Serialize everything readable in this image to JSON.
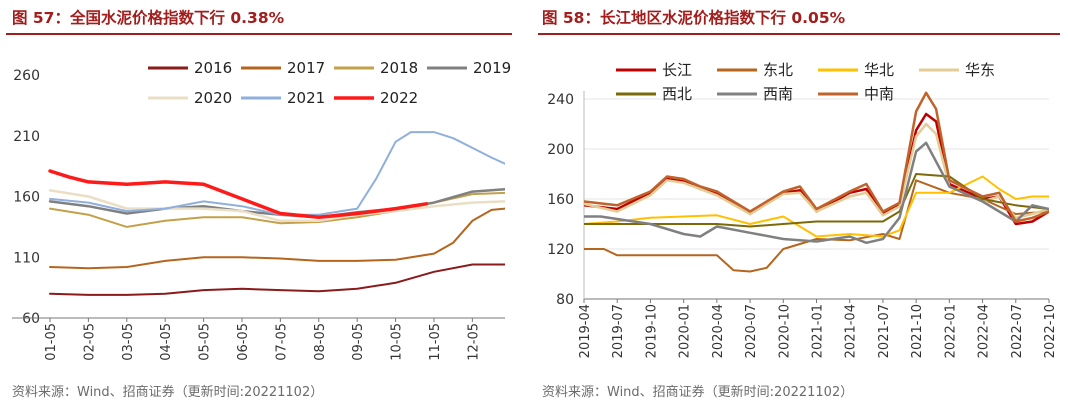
{
  "left": {
    "title": "图 57：全国水泥价格指数下行 0.38%",
    "source": "资料来源：Wind、招商证券（更新时间:20221102）"
  },
  "right": {
    "title": "图 58：长江地区水泥价格指数下行 0.05%",
    "source": "资料来源：Wind、招商证券（更新时间:20221102）"
  },
  "chart_data": [
    {
      "type": "line",
      "title": "全国水泥价格指数下行 0.38%",
      "x_ticks": [
        "01-05",
        "02-05",
        "03-05",
        "04-05",
        "05-05",
        "06-05",
        "07-05",
        "08-05",
        "09-05",
        "10-05",
        "11-05",
        "12-05"
      ],
      "x_range": [
        1,
        12.85
      ],
      "ylim": [
        60,
        260
      ],
      "y_ticks": [
        60,
        110,
        160,
        210,
        260
      ],
      "legend_position": "top",
      "series": [
        {
          "name": "2016",
          "color": "#8b1a1a",
          "width": 2,
          "x": [
            1,
            2,
            3,
            4,
            5,
            6,
            7,
            8,
            9,
            10,
            11,
            12,
            12.85
          ],
          "values": [
            80,
            79,
            79,
            80,
            83,
            84,
            83,
            82,
            84,
            89,
            98,
            104,
            104
          ]
        },
        {
          "name": "2017",
          "color": "#b5651d",
          "width": 2,
          "x": [
            1,
            2,
            3,
            4,
            5,
            6,
            7,
            8,
            9,
            10,
            11,
            11.5,
            12,
            12.5,
            12.85
          ],
          "values": [
            102,
            101,
            102,
            107,
            110,
            110,
            109,
            107,
            107,
            108,
            113,
            122,
            140,
            149,
            150
          ]
        },
        {
          "name": "2018",
          "color": "#c4a04a",
          "width": 2,
          "x": [
            1,
            2,
            3,
            4,
            5,
            6,
            7,
            8,
            9,
            10,
            11,
            12,
            12.85
          ],
          "values": [
            150,
            145,
            135,
            140,
            143,
            143,
            138,
            139,
            143,
            148,
            155,
            162,
            163
          ]
        },
        {
          "name": "2019",
          "color": "#808080",
          "width": 2.5,
          "x": [
            1,
            2,
            3,
            4,
            5,
            6,
            7,
            8,
            9,
            10,
            11,
            12,
            12.85
          ],
          "values": [
            156,
            152,
            146,
            150,
            152,
            148,
            145,
            143,
            147,
            150,
            155,
            164,
            166
          ]
        },
        {
          "name": "2020",
          "color": "#eadfc4",
          "width": 2.5,
          "x": [
            1,
            2,
            3,
            4,
            5,
            6,
            7,
            8,
            9,
            10,
            11,
            12,
            12.85
          ],
          "values": [
            165,
            160,
            150,
            150,
            150,
            148,
            140,
            140,
            145,
            148,
            152,
            155,
            156
          ]
        },
        {
          "name": "2021",
          "color": "#8fb0dc",
          "width": 2,
          "x": [
            1,
            2,
            3,
            4,
            5,
            6,
            7,
            8,
            9,
            9.5,
            10,
            10.4,
            11,
            11.5,
            12,
            12.5,
            12.85
          ],
          "values": [
            158,
            155,
            148,
            150,
            156,
            152,
            145,
            145,
            150,
            175,
            205,
            213,
            213,
            208,
            200,
            192,
            187
          ]
        },
        {
          "name": "2022",
          "color": "#ff1a1a",
          "width": 3.5,
          "x": [
            1,
            1.5,
            2,
            3,
            4,
            5,
            6,
            7,
            8,
            9,
            10,
            10.8
          ],
          "values": [
            181,
            176,
            172,
            170,
            172,
            170,
            158,
            146,
            143,
            146,
            150,
            154
          ]
        }
      ]
    },
    {
      "type": "line",
      "title": "长江地区水泥价格指数下行 0.05%",
      "x_ticks": [
        "2019-04",
        "2019-07",
        "2019-10",
        "2020-01",
        "2020-04",
        "2020-07",
        "2020-10",
        "2021-01",
        "2021-04",
        "2021-07",
        "2021-10",
        "2022-01",
        "2022-04",
        "2022-07",
        "2022-10"
      ],
      "x_range": [
        0,
        14
      ],
      "ylim": [
        80,
        240
      ],
      "y_ticks": [
        80,
        120,
        160,
        200,
        240
      ],
      "legend_position": "top",
      "series": [
        {
          "name": "长江",
          "color": "#c00000",
          "width": 2.5,
          "x": [
            0,
            1,
            2,
            2.5,
            3,
            3.5,
            4,
            5,
            6,
            6.5,
            7,
            8,
            8.5,
            9,
            9.5,
            10,
            10.3,
            10.6,
            11,
            12,
            12.5,
            13,
            13.5,
            14
          ],
          "values": [
            155,
            152,
            165,
            176,
            174,
            168,
            165,
            148,
            165,
            167,
            150,
            165,
            168,
            148,
            155,
            215,
            228,
            222,
            172,
            160,
            162,
            140,
            142,
            150
          ]
        },
        {
          "name": "东北",
          "color": "#b5651d",
          "width": 2,
          "x": [
            0,
            0.6,
            1,
            2,
            3,
            4,
            4.5,
            5,
            5.5,
            6,
            7,
            8,
            9,
            9.5,
            10,
            11,
            12,
            13,
            14
          ],
          "values": [
            120,
            120,
            115,
            115,
            115,
            115,
            103,
            102,
            105,
            120,
            128,
            127,
            132,
            128,
            175,
            165,
            160,
            148,
            150
          ]
        },
        {
          "name": "华北",
          "color": "#ffc000",
          "width": 2,
          "x": [
            0,
            1,
            2,
            3,
            4,
            5,
            6,
            7,
            8,
            9,
            9.5,
            10,
            11,
            12,
            12.5,
            13,
            13.5,
            14
          ],
          "values": [
            140,
            142,
            145,
            146,
            147,
            140,
            146,
            130,
            132,
            130,
            135,
            165,
            165,
            178,
            168,
            160,
            162,
            162
          ]
        },
        {
          "name": "华东",
          "color": "#e3cc96",
          "width": 2.5,
          "x": [
            0,
            1,
            2,
            2.5,
            3,
            4,
            5,
            6,
            6.5,
            7,
            8,
            8.5,
            9,
            9.5,
            10,
            10.3,
            10.6,
            11,
            12,
            12.5,
            13,
            13.5,
            14
          ],
          "values": [
            156,
            150,
            163,
            175,
            173,
            163,
            148,
            164,
            165,
            150,
            162,
            165,
            147,
            154,
            210,
            220,
            212,
            170,
            158,
            162,
            145,
            148,
            152
          ]
        },
        {
          "name": "西北",
          "color": "#7b6a0a",
          "width": 2,
          "x": [
            0,
            1,
            2,
            3,
            4,
            5,
            6,
            7,
            8,
            9,
            9.5,
            10,
            11,
            12,
            13,
            14
          ],
          "values": [
            140,
            140,
            140,
            140,
            140,
            138,
            140,
            142,
            142,
            142,
            150,
            180,
            178,
            160,
            155,
            152
          ]
        },
        {
          "name": "西南",
          "color": "#808080",
          "width": 2.5,
          "x": [
            0,
            0.5,
            1,
            2,
            3,
            3.5,
            4,
            5,
            6,
            7,
            8,
            8.5,
            9,
            9.5,
            10,
            10.3,
            11,
            12,
            13,
            13.5,
            14
          ],
          "values": [
            146,
            146,
            144,
            140,
            132,
            130,
            138,
            133,
            128,
            126,
            130,
            125,
            128,
            145,
            198,
            205,
            170,
            158,
            142,
            155,
            152
          ]
        },
        {
          "name": "中南",
          "color": "#c0622a",
          "width": 2.5,
          "x": [
            0,
            1,
            2,
            2.5,
            3,
            3.5,
            4,
            5,
            6,
            6.5,
            7,
            8,
            8.5,
            9,
            9.5,
            10,
            10.3,
            10.6,
            11,
            12,
            12.5,
            13,
            13.5,
            14
          ],
          "values": [
            158,
            155,
            166,
            178,
            176,
            170,
            166,
            150,
            166,
            170,
            152,
            166,
            172,
            150,
            157,
            230,
            245,
            232,
            175,
            162,
            165,
            142,
            145,
            150
          ]
        }
      ]
    }
  ]
}
